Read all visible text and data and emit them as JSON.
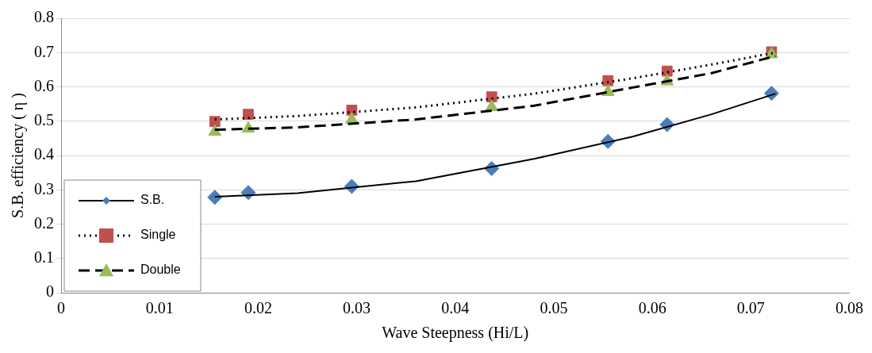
{
  "chart_data": {
    "type": "scatter",
    "xlabel": "Wave Steepness (Hi/L)",
    "ylabel": "S.B. efficiency ( η )",
    "xlim": [
      0,
      0.08
    ],
    "xticks": [
      0,
      0.01,
      0.02,
      0.03,
      0.04,
      0.05,
      0.06,
      0.07,
      0.08
    ],
    "ylim": [
      0,
      0.8
    ],
    "yticks": [
      0,
      0.1,
      0.2,
      0.3,
      0.4,
      0.5,
      0.6,
      0.7,
      0.8
    ],
    "grid": "y",
    "legend": "bottom left",
    "series": [
      {
        "name": "S.B.",
        "marker": "diamond",
        "color": "#4a7ebb",
        "x": [
          0.0156,
          0.019,
          0.0295,
          0.0437,
          0.0555,
          0.0615,
          0.0721
        ],
        "values": [
          0.278,
          0.292,
          0.31,
          0.362,
          0.441,
          0.49,
          0.581
        ]
      },
      {
        "name": "Single",
        "marker": "square",
        "color": "#c0504d",
        "x": [
          0.0156,
          0.019,
          0.0295,
          0.0437,
          0.0555,
          0.0615,
          0.0721
        ],
        "values": [
          0.499,
          0.52,
          0.532,
          0.571,
          0.618,
          0.646,
          0.702
        ]
      },
      {
        "name": "Double",
        "marker": "triangle",
        "color": "#9bbb59",
        "x": [
          0.0156,
          0.019,
          0.0295,
          0.0437,
          0.0555,
          0.0615,
          0.0721
        ],
        "values": [
          0.469,
          0.478,
          0.504,
          0.541,
          0.585,
          0.616,
          0.695
        ]
      },
      {
        "type": "line",
        "marker": "none",
        "line_style": "solid",
        "color": "#000000",
        "x": [
          0.0156,
          0.024,
          0.036,
          0.048,
          0.058,
          0.066,
          0.0725
        ],
        "values": [
          0.28,
          0.29,
          0.325,
          0.39,
          0.455,
          0.52,
          0.58
        ]
      },
      {
        "type": "line",
        "marker": "none",
        "line_style": "dotted",
        "color": "#000000",
        "x": [
          0.0156,
          0.024,
          0.036,
          0.048,
          0.058,
          0.066,
          0.0725
        ],
        "values": [
          0.505,
          0.515,
          0.54,
          0.58,
          0.625,
          0.665,
          0.7
        ]
      },
      {
        "type": "line",
        "marker": "none",
        "line_style": "dashed",
        "color": "#000000",
        "x": [
          0.0156,
          0.024,
          0.036,
          0.048,
          0.058,
          0.066,
          0.0725
        ],
        "values": [
          0.475,
          0.482,
          0.505,
          0.545,
          0.598,
          0.64,
          0.69
        ]
      }
    ]
  }
}
